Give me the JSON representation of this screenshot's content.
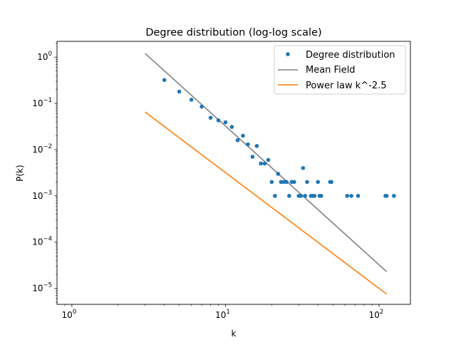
{
  "chart_data": {
    "type": "scatter",
    "title": "Degree distribution (log-log scale)",
    "xlabel": "k",
    "ylabel": "P(k)",
    "xscale": "log",
    "yscale": "log",
    "xlim": [
      0.8,
      160
    ],
    "ylim": [
      4.5e-06,
      2.2
    ],
    "legend_position": "top-right",
    "x_ticks": [
      {
        "value": 1,
        "base": "10",
        "exp": "0"
      },
      {
        "value": 10,
        "base": "10",
        "exp": "1"
      },
      {
        "value": 100,
        "base": "10",
        "exp": "2"
      }
    ],
    "y_ticks": [
      {
        "value": 1,
        "base": "10",
        "exp": "0"
      },
      {
        "value": 0.1,
        "base": "10",
        "exp": "−1"
      },
      {
        "value": 0.01,
        "base": "10",
        "exp": "−2"
      },
      {
        "value": 0.001,
        "base": "10",
        "exp": "−3"
      },
      {
        "value": 0.0001,
        "base": "10",
        "exp": "−4"
      },
      {
        "value": 1e-05,
        "base": "10",
        "exp": "−5"
      }
    ],
    "series": [
      {
        "name": "Degree distribution",
        "kind": "scatter",
        "color": "#1f77b4",
        "points": [
          [
            4,
            0.32
          ],
          [
            5,
            0.18
          ],
          [
            6,
            0.12
          ],
          [
            7,
            0.085
          ],
          [
            8,
            0.049
          ],
          [
            9,
            0.043
          ],
          [
            10,
            0.039
          ],
          [
            11,
            0.031
          ],
          [
            12,
            0.016
          ],
          [
            13,
            0.02
          ],
          [
            14,
            0.013
          ],
          [
            15,
            0.007
          ],
          [
            16,
            0.012
          ],
          [
            17,
            0.005
          ],
          [
            18,
            0.005
          ],
          [
            19,
            0.006
          ],
          [
            20,
            0.002
          ],
          [
            21,
            0.001
          ],
          [
            22,
            0.003
          ],
          [
            23,
            0.002
          ],
          [
            24,
            0.002
          ],
          [
            25,
            0.002
          ],
          [
            26,
            0.001
          ],
          [
            27,
            0.002
          ],
          [
            28,
            0.002
          ],
          [
            30,
            0.001
          ],
          [
            31,
            0.001
          ],
          [
            32,
            0.004
          ],
          [
            33,
            0.001
          ],
          [
            34,
            0.002
          ],
          [
            36,
            0.001
          ],
          [
            37,
            0.001
          ],
          [
            38,
            0.001
          ],
          [
            40,
            0.002
          ],
          [
            41,
            0.001
          ],
          [
            42,
            0.001
          ],
          [
            48,
            0.002
          ],
          [
            49,
            0.002
          ],
          [
            62,
            0.001
          ],
          [
            66,
            0.001
          ],
          [
            73,
            0.001
          ],
          [
            110,
            0.001
          ],
          [
            112,
            0.001
          ],
          [
            125,
            0.001
          ]
        ]
      },
      {
        "name": "Mean Field",
        "kind": "line",
        "color": "#808080",
        "points": [
          [
            3,
            1.2
          ],
          [
            112,
            2.3e-05
          ]
        ]
      },
      {
        "name": "Power law k^-2.5",
        "kind": "line",
        "color": "#ff7f0e",
        "points": [
          [
            3,
            0.065
          ],
          [
            112,
            7.5e-06
          ]
        ]
      }
    ]
  }
}
